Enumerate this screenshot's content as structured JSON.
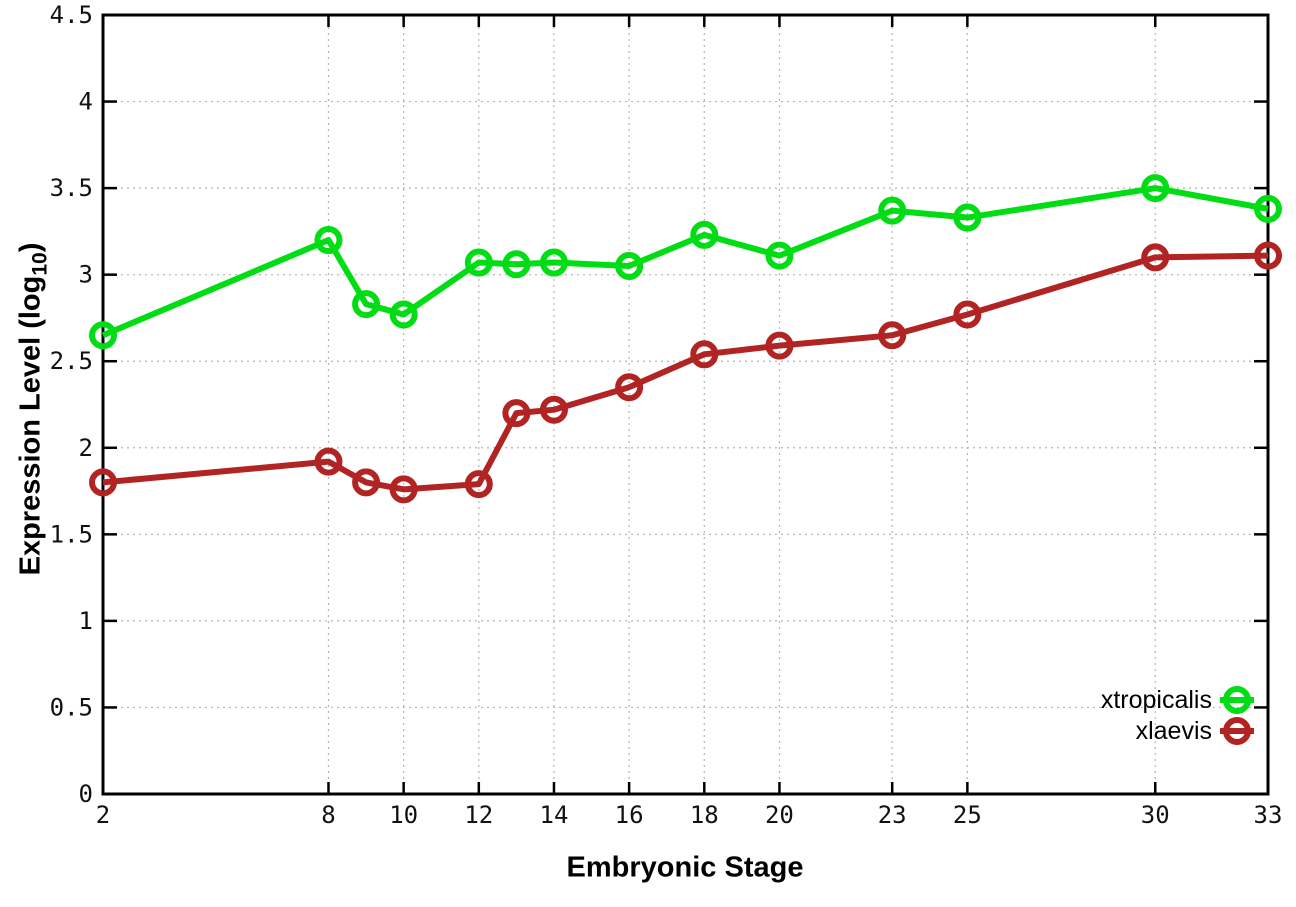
{
  "chart_data": {
    "type": "line",
    "title": "",
    "xlabel": "Embryonic Stage",
    "ylabel": "Expression Level (log10)",
    "ylabel_prefix": "Expression Level (log",
    "ylabel_subscript": "10",
    "ylabel_suffix": ")",
    "x": [
      2,
      8,
      9,
      10,
      12,
      13,
      14,
      16,
      18,
      20,
      23,
      25,
      30,
      33
    ],
    "series": [
      {
        "name": "xtropicalis",
        "color": "#00dd14",
        "values": [
          2.65,
          3.2,
          2.83,
          2.77,
          3.07,
          3.06,
          3.07,
          3.05,
          3.23,
          3.11,
          3.37,
          3.33,
          3.5,
          3.38
        ]
      },
      {
        "name": "xlaevis",
        "color": "#b22424",
        "values": [
          1.8,
          1.92,
          1.8,
          1.76,
          1.79,
          2.2,
          2.22,
          2.35,
          2.54,
          2.59,
          2.65,
          2.77,
          3.1,
          3.11
        ]
      }
    ],
    "xlim": [
      2,
      33
    ],
    "ylim": [
      0,
      4.5
    ],
    "xticks": [
      2,
      8,
      10,
      12,
      14,
      16,
      18,
      20,
      23,
      25,
      30,
      33
    ],
    "xtick_labels": [
      "2",
      "8",
      "10",
      "12",
      "14",
      "16",
      "18",
      "20",
      "23",
      "25",
      "30",
      "33"
    ],
    "yticks": [
      0,
      0.5,
      1,
      1.5,
      2,
      2.5,
      3,
      3.5,
      4,
      4.5
    ],
    "ytick_labels": [
      "0",
      "0.5",
      "1",
      "1.5",
      "2",
      "2.5",
      "3",
      "3.5",
      "4",
      "4.5"
    ],
    "grid": true,
    "legend_position": "bottom-right",
    "legend_entries": [
      "xtropicalis",
      "xlaevis"
    ],
    "colors": {
      "grid": "#b4b4b4",
      "border": "#000000",
      "tick_text": "#111111"
    }
  }
}
